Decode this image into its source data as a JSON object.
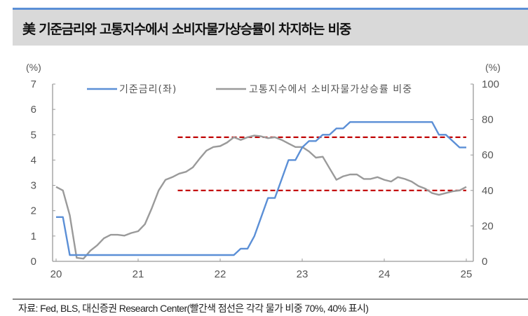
{
  "title": "美 기준금리와 고통지수에서 소비자물가상승률이 차지하는 비중",
  "footer": "자료: Fed, BLS, 대신증권 Research Center(빨간색 점선은 각각 물가 비중 70%, 40% 표시)",
  "colors": {
    "title_border": "#5b8fd6",
    "title_bg": "#d9d9d9",
    "series_rate": "#5b8fd6",
    "series_share": "#9a9a9a",
    "reference_line": "#c00000",
    "axis": "#999999"
  },
  "chart_data": {
    "type": "line",
    "title": "美 기준금리와 고통지수에서 소비자물가상승률이 차지하는 비중",
    "xlabel": "",
    "ylabel_left": "(%)",
    "ylabel_right": "(%)",
    "x_ticks": [
      "20",
      "21",
      "22",
      "23",
      "24",
      "25"
    ],
    "y_left_ticks": [
      "0",
      "1",
      "2",
      "3",
      "4",
      "5",
      "6",
      "7"
    ],
    "y_right_ticks": [
      "0",
      "20",
      "40",
      "60",
      "80",
      "100"
    ],
    "ylim_left": [
      0,
      7
    ],
    "ylim_right": [
      0,
      100
    ],
    "xlim": [
      20,
      25
    ],
    "grid": false,
    "legend_position": "top",
    "reference_lines": [
      {
        "axis": "right",
        "value": 70,
        "x_start": 21.5,
        "x_end": 25,
        "style": "dashed",
        "color": "#c00000"
      },
      {
        "axis": "right",
        "value": 40,
        "x_start": 21.5,
        "x_end": 25,
        "style": "dashed",
        "color": "#c00000"
      }
    ],
    "series": [
      {
        "name": "기준금리(좌)",
        "axis": "left",
        "color": "#5b8fd6",
        "step_months": 1,
        "start": 20.0,
        "values": [
          1.75,
          1.75,
          0.25,
          0.25,
          0.25,
          0.25,
          0.25,
          0.25,
          0.25,
          0.25,
          0.25,
          0.25,
          0.25,
          0.25,
          0.25,
          0.25,
          0.25,
          0.25,
          0.25,
          0.25,
          0.25,
          0.25,
          0.25,
          0.25,
          0.25,
          0.25,
          0.25,
          0.5,
          0.5,
          1.0,
          1.75,
          2.5,
          2.5,
          3.25,
          4.0,
          4.0,
          4.5,
          4.75,
          4.75,
          5.0,
          5.0,
          5.25,
          5.25,
          5.5,
          5.5,
          5.5,
          5.5,
          5.5,
          5.5,
          5.5,
          5.5,
          5.5,
          5.5,
          5.5,
          5.5,
          5.5,
          5.0,
          5.0,
          4.75,
          4.5,
          4.5
        ]
      },
      {
        "name": "고통지수에서 소비자물가상승률 비중",
        "axis": "right",
        "color": "#9a9a9a",
        "step_months": 1,
        "start": 20.0,
        "values": [
          42,
          40,
          26,
          2,
          1.5,
          6,
          9,
          13,
          15,
          15,
          14.5,
          16,
          17,
          21,
          30,
          40,
          46,
          47.5,
          49.5,
          50.5,
          53,
          58,
          62.5,
          64.5,
          65,
          67,
          70,
          68.5,
          70,
          71,
          70.5,
          69.5,
          70,
          68.5,
          66.5,
          64.5,
          64.5,
          62,
          58.5,
          59,
          52.5,
          46,
          48,
          49,
          49,
          46.5,
          46.5,
          47.5,
          46,
          45,
          47.5,
          46.5,
          45,
          42.5,
          41,
          38.5,
          37.5,
          38.5,
          39.5,
          40,
          42
        ]
      }
    ]
  }
}
